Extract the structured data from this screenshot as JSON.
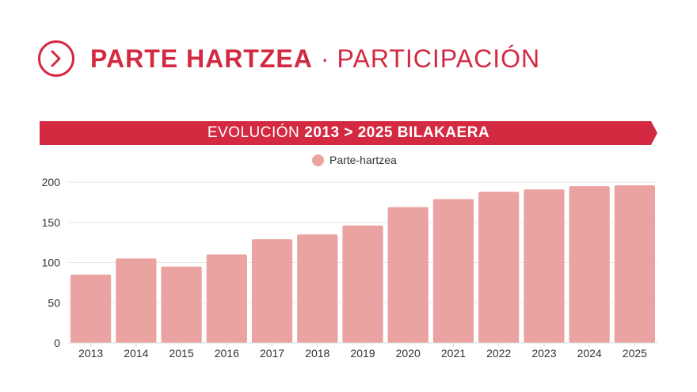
{
  "header": {
    "title_bold": "PARTE HARTZEA",
    "separator": "·",
    "title_light": "PARTICIPACIÓN",
    "icon": "chevron-right-icon"
  },
  "banner": {
    "prefix": "EVOLUCIÓN",
    "bold": "2013 > 2025 BILAKAERA"
  },
  "colors": {
    "accent": "#d32a42",
    "bar": "#eba3a1"
  },
  "chart_data": {
    "type": "bar",
    "categories": [
      "2013",
      "2014",
      "2015",
      "2016",
      "2017",
      "2018",
      "2019",
      "2020",
      "2021",
      "2022",
      "2023",
      "2024",
      "2025"
    ],
    "series": [
      {
        "name": "Parte-hartzea",
        "values": [
          85,
          105,
          95,
          110,
          129,
          135,
          146,
          169,
          179,
          188,
          191,
          195,
          196
        ]
      }
    ],
    "ylim": [
      0,
      200
    ],
    "yticks": [
      0,
      50,
      100,
      150,
      200
    ],
    "grid": true,
    "legend": "top-center"
  }
}
